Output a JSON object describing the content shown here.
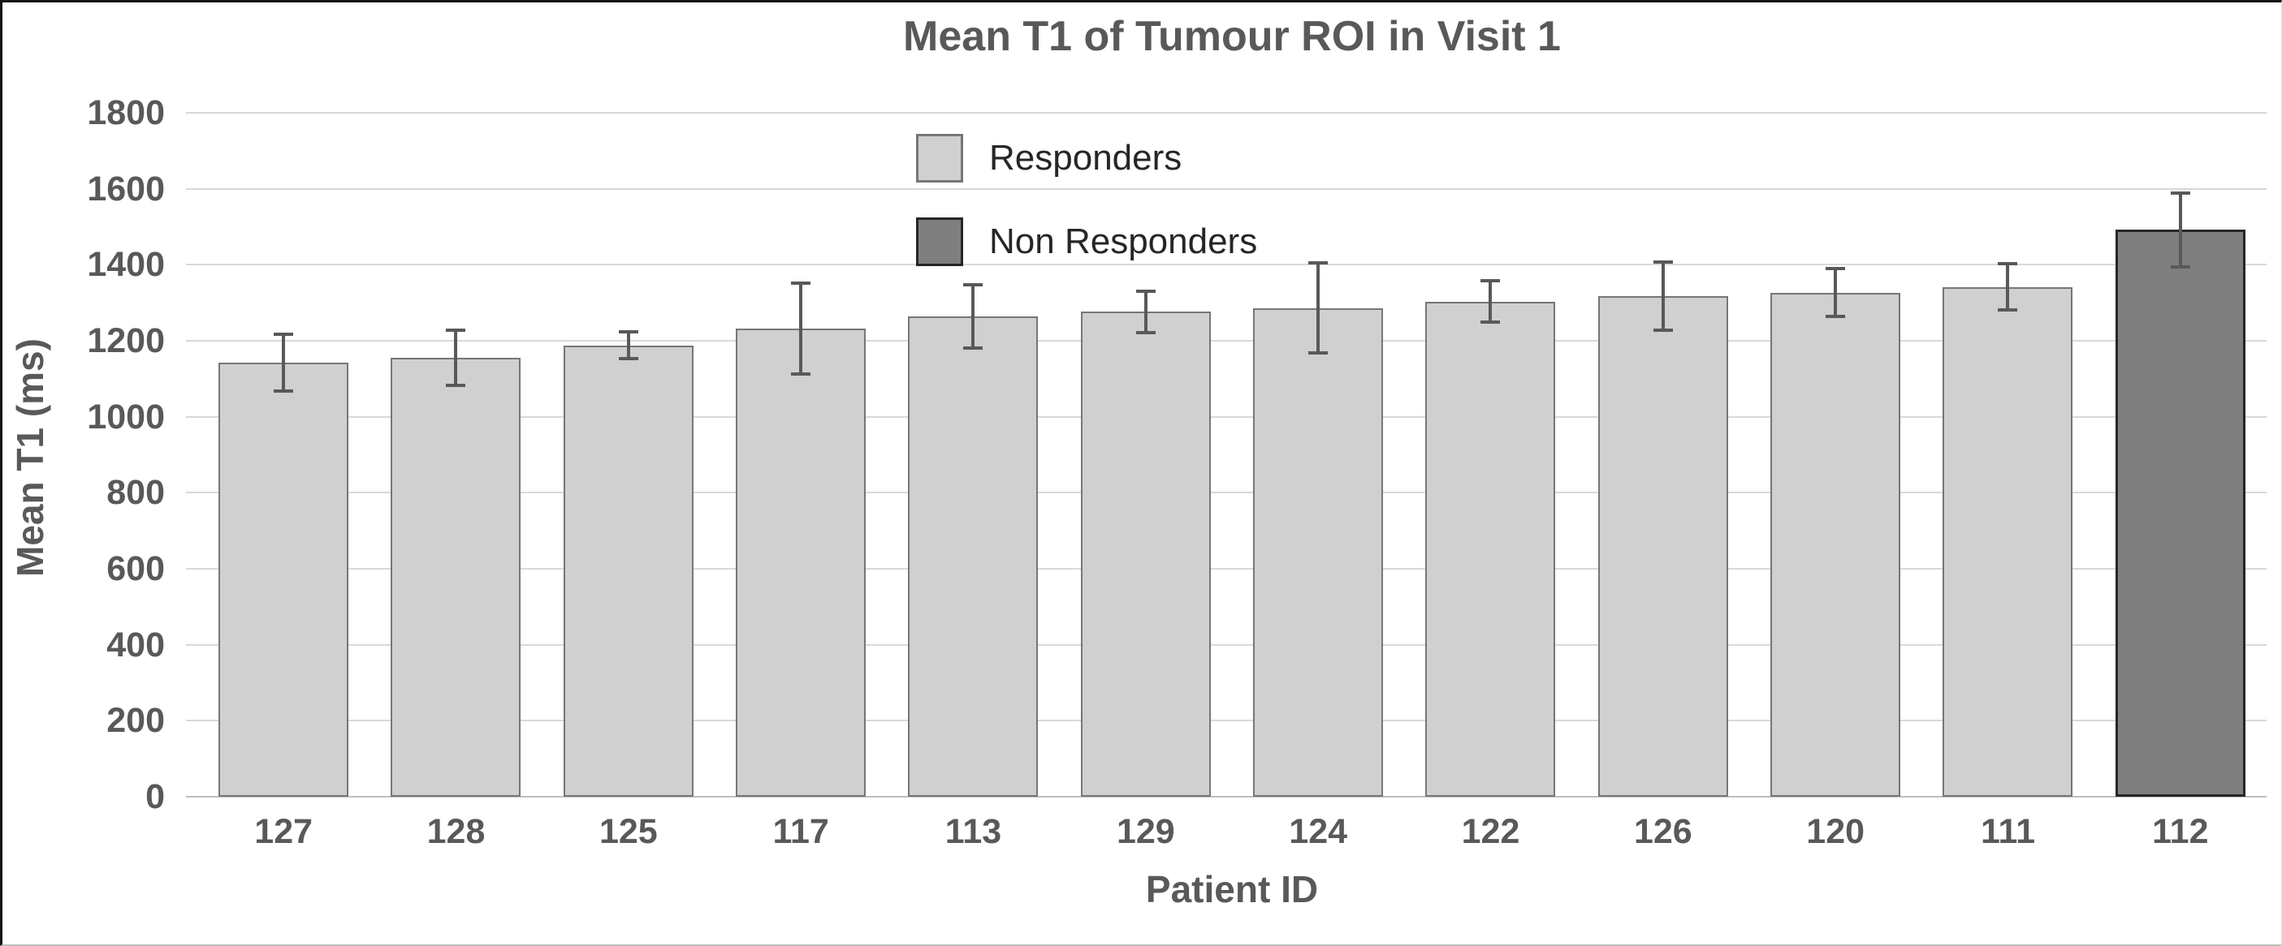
{
  "chart_data": {
    "type": "bar",
    "title": "Mean T1 of Tumour ROI in Visit 1",
    "xlabel": "Patient ID",
    "ylabel": "Mean T1 (ms)",
    "ylim": [
      0,
      1800
    ],
    "ytick_step": 200,
    "grid": true,
    "legend_position": "inside-top-center",
    "legend": [
      {
        "label": "Responders",
        "fill": "#d1d0d1",
        "border": "#767676"
      },
      {
        "label": "Non Responders",
        "fill": "#7f7f7f",
        "border": "#262626"
      }
    ],
    "categories": [
      "127",
      "128",
      "125",
      "117",
      "113",
      "129",
      "124",
      "122",
      "126",
      "120",
      "111",
      "112"
    ],
    "series": [
      {
        "name": "Mean T1 (ms)",
        "values": [
          1142,
          1155,
          1188,
          1232,
          1264,
          1276,
          1286,
          1303,
          1317,
          1327,
          1342,
          1492
        ],
        "error_bars": [
          75,
          72,
          35,
          120,
          84,
          55,
          118,
          54,
          90,
          62,
          60,
          97
        ],
        "groups": [
          "Responders",
          "Responders",
          "Responders",
          "Responders",
          "Responders",
          "Responders",
          "Responders",
          "Responders",
          "Responders",
          "Responders",
          "Responders",
          "Non Responders"
        ]
      }
    ]
  }
}
